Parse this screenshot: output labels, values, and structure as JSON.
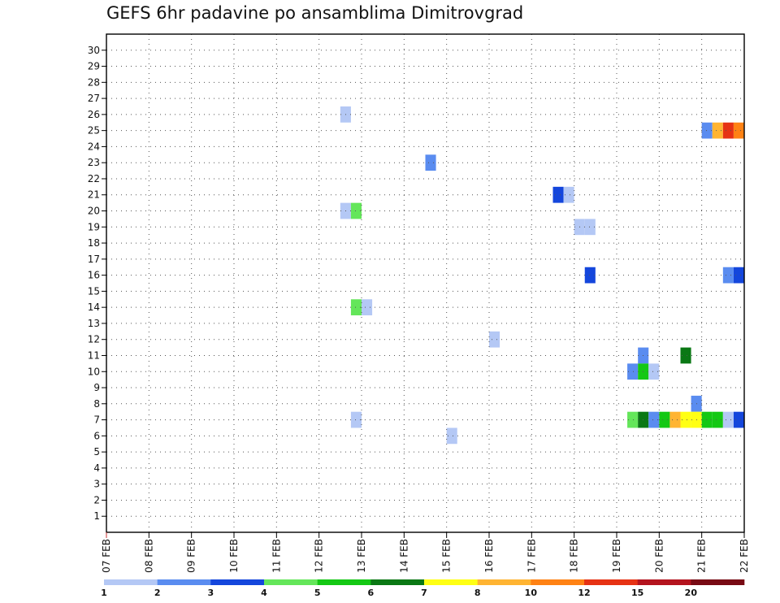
{
  "title": "GEFS 6hr padavine po ansamblima Dimitrovgrad",
  "chart_data": {
    "type": "heatmap",
    "title": "GEFS 6hr padavine po ansamblima Dimitrovgrad",
    "x_tick_labels": [
      "07 FEB",
      "08 FEB",
      "09 FEB",
      "10 FEB",
      "11 FEB",
      "12 FEB",
      "13 FEB",
      "14 FEB",
      "15 FEB",
      "16 FEB",
      "17 FEB",
      "18 FEB",
      "19 FEB",
      "20 FEB",
      "21 FEB",
      "22 FEB"
    ],
    "x_time_step_hours": 6,
    "y_ticks": [
      1,
      2,
      3,
      4,
      5,
      6,
      7,
      8,
      9,
      10,
      11,
      12,
      13,
      14,
      15,
      16,
      17,
      18,
      19,
      20,
      21,
      22,
      23,
      24,
      25,
      26,
      27,
      28,
      29,
      30
    ],
    "ylim": [
      0,
      31
    ],
    "grid": true,
    "legend": {
      "position": "bottom",
      "thresholds": [
        1,
        2,
        3,
        4,
        5,
        6,
        7,
        8,
        10,
        12,
        15,
        20
      ],
      "colors": [
        "#b4c8f5",
        "#5a8cf0",
        "#1446dc",
        "#64e65a",
        "#14c814",
        "#0a7814",
        "#ffff14",
        "#ffb432",
        "#ff8214",
        "#e63214",
        "#b4141e",
        "#780a14"
      ]
    },
    "cells": [
      {
        "member": 26,
        "day": "12 FEB",
        "hour": 12,
        "level": 0
      },
      {
        "member": 25,
        "day": "21 FEB",
        "hour": 0,
        "level": 1
      },
      {
        "member": 25,
        "day": "21 FEB",
        "hour": 6,
        "level": 7
      },
      {
        "member": 25,
        "day": "21 FEB",
        "hour": 12,
        "level": 9
      },
      {
        "member": 25,
        "day": "21 FEB",
        "hour": 18,
        "level": 8
      },
      {
        "member": 23,
        "day": "14 FEB",
        "hour": 12,
        "level": 1
      },
      {
        "member": 21,
        "day": "17 FEB",
        "hour": 12,
        "level": 2
      },
      {
        "member": 21,
        "day": "17 FEB",
        "hour": 18,
        "level": 0
      },
      {
        "member": 20,
        "day": "12 FEB",
        "hour": 12,
        "level": 0
      },
      {
        "member": 20,
        "day": "12 FEB",
        "hour": 18,
        "level": 3
      },
      {
        "member": 19,
        "day": "18 FEB",
        "hour": 0,
        "level": 0
      },
      {
        "member": 19,
        "day": "18 FEB",
        "hour": 6,
        "level": 0
      },
      {
        "member": 16,
        "day": "18 FEB",
        "hour": 6,
        "level": 2
      },
      {
        "member": 16,
        "day": "21 FEB",
        "hour": 12,
        "level": 1
      },
      {
        "member": 16,
        "day": "21 FEB",
        "hour": 18,
        "level": 2
      },
      {
        "member": 14,
        "day": "12 FEB",
        "hour": 18,
        "level": 3
      },
      {
        "member": 14,
        "day": "13 FEB",
        "hour": 0,
        "level": 0
      },
      {
        "member": 12,
        "day": "16 FEB",
        "hour": 0,
        "level": 0
      },
      {
        "member": 11,
        "day": "19 FEB",
        "hour": 12,
        "level": 1
      },
      {
        "member": 11,
        "day": "20 FEB",
        "hour": 12,
        "level": 5
      },
      {
        "member": 10,
        "day": "19 FEB",
        "hour": 6,
        "level": 1
      },
      {
        "member": 10,
        "day": "19 FEB",
        "hour": 12,
        "level": 4
      },
      {
        "member": 10,
        "day": "19 FEB",
        "hour": 18,
        "level": 0
      },
      {
        "member": 8,
        "day": "20 FEB",
        "hour": 18,
        "level": 1
      },
      {
        "member": 7,
        "day": "12 FEB",
        "hour": 18,
        "level": 0
      },
      {
        "member": 7,
        "day": "19 FEB",
        "hour": 6,
        "level": 3
      },
      {
        "member": 7,
        "day": "19 FEB",
        "hour": 12,
        "level": 5
      },
      {
        "member": 7,
        "day": "19 FEB",
        "hour": 18,
        "level": 1
      },
      {
        "member": 7,
        "day": "20 FEB",
        "hour": 0,
        "level": 4
      },
      {
        "member": 7,
        "day": "20 FEB",
        "hour": 6,
        "level": 7
      },
      {
        "member": 7,
        "day": "20 FEB",
        "hour": 12,
        "level": 6
      },
      {
        "member": 7,
        "day": "20 FEB",
        "hour": 18,
        "level": 6
      },
      {
        "member": 7,
        "day": "21 FEB",
        "hour": 0,
        "level": 4
      },
      {
        "member": 7,
        "day": "21 FEB",
        "hour": 6,
        "level": 4
      },
      {
        "member": 7,
        "day": "21 FEB",
        "hour": 12,
        "level": 0
      },
      {
        "member": 7,
        "day": "21 FEB",
        "hour": 18,
        "level": 2
      },
      {
        "member": 6,
        "day": "15 FEB",
        "hour": 0,
        "level": 0
      }
    ]
  }
}
